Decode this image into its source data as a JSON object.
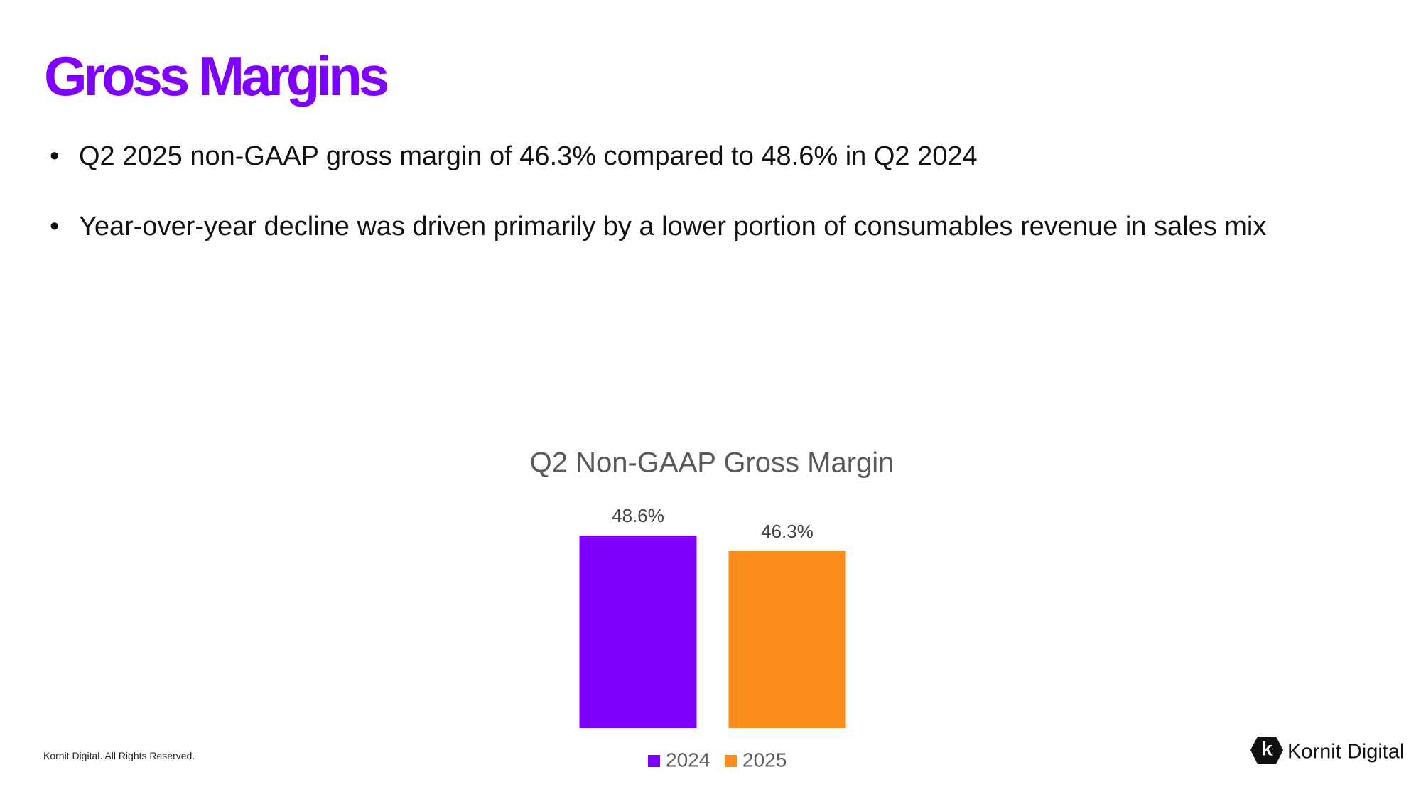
{
  "title": "Gross Margins",
  "bullets": [
    "Q2 2025 non-GAAP gross margin of 46.3% compared to 48.6% in Q2 2024",
    "Year-over-year decline was driven primarily by a lower portion of consumables revenue in sales mix"
  ],
  "footer": "Kornit Digital. All Rights Reserved.",
  "logo_text": "Kornit Digital",
  "chart_data": {
    "type": "bar",
    "title": "Q2 Non-GAAP Gross Margin",
    "categories": [
      null
    ],
    "series": [
      {
        "name": "2024",
        "color": "#7f00ff",
        "values": [
          48.6
        ],
        "value_labels": [
          "48.6%"
        ]
      },
      {
        "name": "2025",
        "color": "#fd8c1e",
        "values": [
          46.3
        ],
        "value_labels": [
          "46.3%"
        ]
      }
    ],
    "ylim": [
      20,
      50
    ],
    "legend": "bottom"
  }
}
